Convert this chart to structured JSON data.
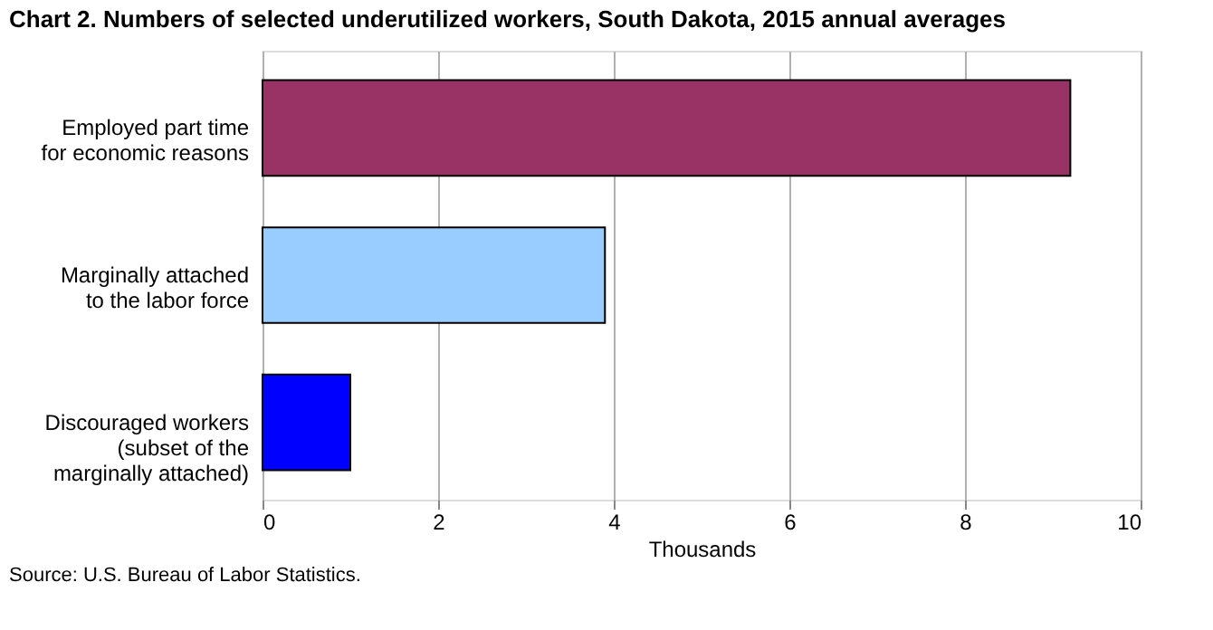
{
  "chart_data": {
    "type": "bar",
    "orientation": "horizontal",
    "title": "Chart 2. Numbers of selected underutilized workers, South Dakota, 2015 annual averages",
    "categories": [
      "Employed part time for economic reasons",
      "Marginally attached to the labor force",
      "Discouraged workers (subset of the marginally attached)"
    ],
    "values": [
      9.2,
      3.9,
      1.0
    ],
    "colors": [
      "#993366",
      "#99ccff",
      "#0000ff"
    ],
    "xlabel": "Thousands",
    "xlim": [
      0,
      10
    ],
    "xticks": [
      0,
      2,
      4,
      6,
      8,
      10
    ],
    "grid": "x",
    "annotations": [
      "Source: U.S. Bureau of Labor Statistics."
    ]
  }
}
